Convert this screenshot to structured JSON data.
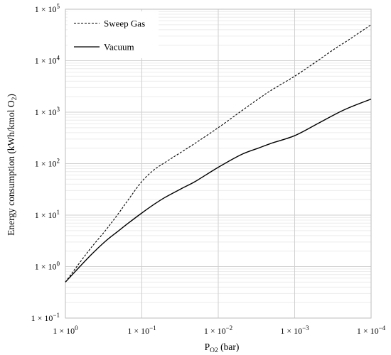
{
  "chart_data": {
    "type": "line",
    "xlabel": "P",
    "xlabel_sub": "O2",
    "xlabel_unit": " (bar)",
    "ylabel": "Energy consumption (kWh/kmol O",
    "ylabel_sub": "2",
    "ylabel_end": ")",
    "x_scale": "log",
    "x_reversed": true,
    "y_scale": "log",
    "xlim": [
      1,
      0.0001
    ],
    "ylim": [
      0.1,
      100000
    ],
    "grid": true,
    "legend_position": "top-left",
    "x_ticks": [
      {
        "value": 1,
        "mantissa": "1 × 10",
        "exp": "0"
      },
      {
        "value": 0.1,
        "mantissa": "1 × 10",
        "exp": "−1"
      },
      {
        "value": 0.01,
        "mantissa": "1 × 10",
        "exp": "−2"
      },
      {
        "value": 0.001,
        "mantissa": "1 × 10",
        "exp": "−3"
      },
      {
        "value": 0.0001,
        "mantissa": "1 × 10",
        "exp": "−4"
      }
    ],
    "y_ticks": [
      {
        "value": 0.1,
        "mantissa": "1 × 10",
        "exp": "−1"
      },
      {
        "value": 1,
        "mantissa": "1 × 10",
        "exp": "0"
      },
      {
        "value": 10,
        "mantissa": "1 × 10",
        "exp": "1"
      },
      {
        "value": 100,
        "mantissa": "1 × 10",
        "exp": "2"
      },
      {
        "value": 1000,
        "mantissa": "1 × 10",
        "exp": "3"
      },
      {
        "value": 10000,
        "mantissa": "1 × 10",
        "exp": "4"
      },
      {
        "value": 100000,
        "mantissa": "1 × 10",
        "exp": "5"
      }
    ],
    "series": [
      {
        "name": "Sweep Gas",
        "style": "dashed",
        "color": "#000000",
        "x": [
          1,
          0.5,
          0.3,
          0.2,
          0.15,
          0.1,
          0.07,
          0.05,
          0.03,
          0.02,
          0.01,
          0.005,
          0.003,
          0.002,
          0.001,
          0.0005,
          0.0003,
          0.0002,
          0.0001
        ],
        "y": [
          0.5,
          2.0,
          5.0,
          11,
          20,
          45,
          75,
          105,
          170,
          250,
          500,
          1050,
          1800,
          2700,
          5000,
          10000,
          17000,
          25000,
          50000
        ]
      },
      {
        "name": "Vacuum",
        "style": "solid",
        "color": "#000000",
        "x": [
          1,
          0.5,
          0.3,
          0.2,
          0.15,
          0.1,
          0.07,
          0.05,
          0.03,
          0.02,
          0.01,
          0.005,
          0.003,
          0.002,
          0.001,
          0.0005,
          0.0003,
          0.0002,
          0.0001
        ],
        "y": [
          0.5,
          1.5,
          3.1,
          5.0,
          7.0,
          11,
          16,
          22,
          33,
          45,
          85,
          150,
          200,
          250,
          350,
          600,
          900,
          1200,
          1800
        ]
      }
    ]
  }
}
